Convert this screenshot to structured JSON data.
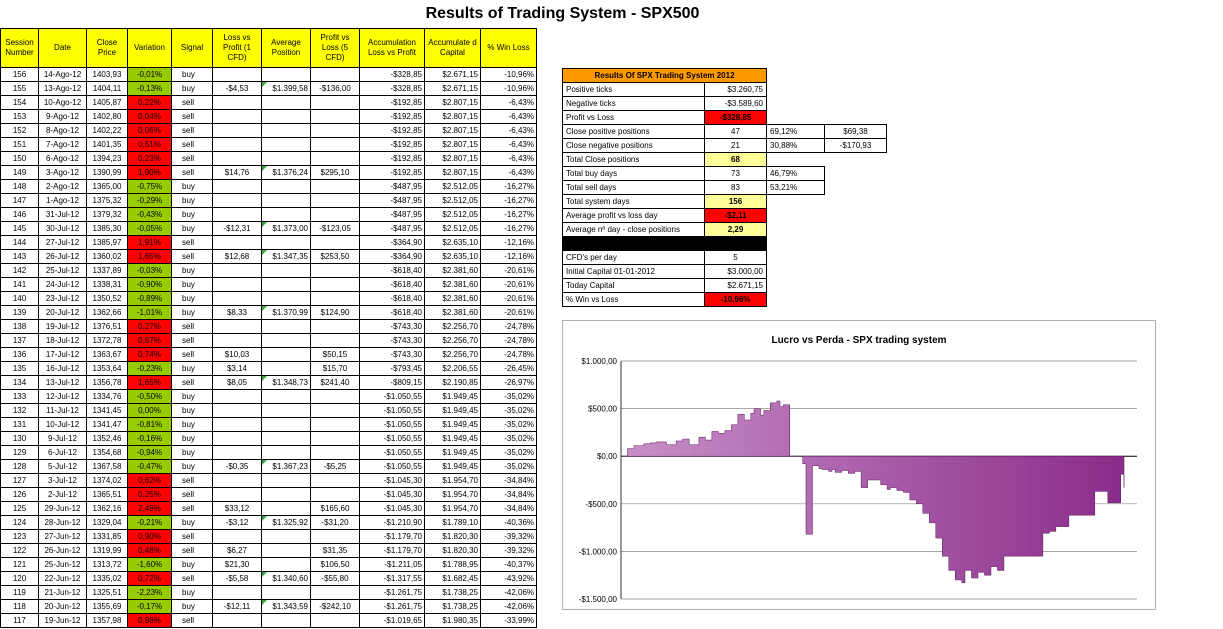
{
  "title": "Results of Trading System -  SPX500",
  "table": {
    "headers": [
      "Session Number",
      "Date",
      "Close Price",
      "Variation",
      "Signal",
      "Loss vs Profit (1 CFD)",
      "Average Position",
      "Profit vs Loss (5 CFD)",
      "Accumulation Loss vs Profit",
      "Accumulate d Capital",
      "% Win Loss"
    ],
    "rows": [
      {
        "session": "156",
        "date": "14-Ago-12",
        "close": "1403,93",
        "variation": "-0,01%",
        "var_color": "pos",
        "signal": "buy",
        "loss_profit": "",
        "avg": "",
        "profit_loss": "",
        "accum": "-$328,85",
        "capital": "$2.671,15",
        "win": "-10,96%",
        "flag": false
      },
      {
        "session": "155",
        "date": "13-Ago-12",
        "close": "1404,11",
        "variation": "-0,13%",
        "var_color": "pos",
        "signal": "buy",
        "loss_profit": "-$4,53",
        "avg": "$1.399,58",
        "profit_loss": "-$136,00",
        "accum": "-$328,85",
        "capital": "$2.671,15",
        "win": "-10,96%",
        "flag": true
      },
      {
        "session": "154",
        "date": "10-Ago-12",
        "close": "1405,87",
        "variation": "0,22%",
        "var_color": "neg",
        "signal": "sell",
        "loss_profit": "",
        "avg": "",
        "profit_loss": "",
        "accum": "-$192,85",
        "capital": "$2.807,15",
        "win": "-6,43%",
        "flag": false
      },
      {
        "session": "153",
        "date": "9-Ago-12",
        "close": "1402,80",
        "variation": "0,04%",
        "var_color": "neg",
        "signal": "sell",
        "loss_profit": "",
        "avg": "",
        "profit_loss": "",
        "accum": "-$192,85",
        "capital": "$2.807,15",
        "win": "-6,43%",
        "flag": false
      },
      {
        "session": "152",
        "date": "8-Ago-12",
        "close": "1402,22",
        "variation": "0,06%",
        "var_color": "neg",
        "signal": "sell",
        "loss_profit": "",
        "avg": "",
        "profit_loss": "",
        "accum": "-$192,85",
        "capital": "$2.807,15",
        "win": "-6,43%",
        "flag": false
      },
      {
        "session": "151",
        "date": "7-Ago-12",
        "close": "1401,35",
        "variation": "0,51%",
        "var_color": "neg",
        "signal": "sell",
        "loss_profit": "",
        "avg": "",
        "profit_loss": "",
        "accum": "-$192,85",
        "capital": "$2.807,15",
        "win": "-6,43%",
        "flag": false
      },
      {
        "session": "150",
        "date": "6-Ago-12",
        "close": "1394,23",
        "variation": "0,23%",
        "var_color": "neg",
        "signal": "sell",
        "loss_profit": "",
        "avg": "",
        "profit_loss": "",
        "accum": "-$192,85",
        "capital": "$2.807,15",
        "win": "-6,43%",
        "flag": false
      },
      {
        "session": "149",
        "date": "3-Ago-12",
        "close": "1390,99",
        "variation": "1,90%",
        "var_color": "neg",
        "signal": "sell",
        "loss_profit": "$14,76",
        "avg": "$1.376,24",
        "profit_loss": "$295,10",
        "accum": "-$192,85",
        "capital": "$2.807,15",
        "win": "-6,43%",
        "flag": true
      },
      {
        "session": "148",
        "date": "2-Ago-12",
        "close": "1365,00",
        "variation": "-0,75%",
        "var_color": "pos",
        "signal": "buy",
        "loss_profit": "",
        "avg": "",
        "profit_loss": "",
        "accum": "-$487,95",
        "capital": "$2.512,05",
        "win": "-16,27%",
        "flag": false
      },
      {
        "session": "147",
        "date": "1-Ago-12",
        "close": "1375,32",
        "variation": "-0,29%",
        "var_color": "pos",
        "signal": "buy",
        "loss_profit": "",
        "avg": "",
        "profit_loss": "",
        "accum": "-$487,95",
        "capital": "$2.512,05",
        "win": "-16,27%",
        "flag": false
      },
      {
        "session": "146",
        "date": "31-Jul-12",
        "close": "1379,32",
        "variation": "-0,43%",
        "var_color": "pos",
        "signal": "buy",
        "loss_profit": "",
        "avg": "",
        "profit_loss": "",
        "accum": "-$487,95",
        "capital": "$2.512,05",
        "win": "-16,27%",
        "flag": false
      },
      {
        "session": "145",
        "date": "30-Jul-12",
        "close": "1385,30",
        "variation": "-0,05%",
        "var_color": "pos",
        "signal": "buy",
        "loss_profit": "-$12,31",
        "avg": "$1.373,00",
        "profit_loss": "-$123,05",
        "accum": "-$487,95",
        "capital": "$2.512,05",
        "win": "-16,27%",
        "flag": true
      },
      {
        "session": "144",
        "date": "27-Jul-12",
        "close": "1385,97",
        "variation": "1,91%",
        "var_color": "neg",
        "signal": "sell",
        "loss_profit": "",
        "avg": "",
        "profit_loss": "",
        "accum": "-$364,90",
        "capital": "$2.635,10",
        "win": "-12,16%",
        "flag": false
      },
      {
        "session": "143",
        "date": "26-Jul-12",
        "close": "1360,02",
        "variation": "1,65%",
        "var_color": "neg",
        "signal": "sell",
        "loss_profit": "$12,68",
        "avg": "$1.347,35",
        "profit_loss": "$253,50",
        "accum": "-$364,90",
        "capital": "$2.635,10",
        "win": "-12,16%",
        "flag": true
      },
      {
        "session": "142",
        "date": "25-Jul-12",
        "close": "1337,89",
        "variation": "-0,03%",
        "var_color": "pos",
        "signal": "buy",
        "loss_profit": "",
        "avg": "",
        "profit_loss": "",
        "accum": "-$618,40",
        "capital": "$2.381,60",
        "win": "-20,61%",
        "flag": false
      },
      {
        "session": "141",
        "date": "24-Jul-12",
        "close": "1338,31",
        "variation": "-0,90%",
        "var_color": "pos",
        "signal": "buy",
        "loss_profit": "",
        "avg": "",
        "profit_loss": "",
        "accum": "-$618,40",
        "capital": "$2.381,60",
        "win": "-20,61%",
        "flag": false
      },
      {
        "session": "140",
        "date": "23-Jul-12",
        "close": "1350,52",
        "variation": "-0,89%",
        "var_color": "pos",
        "signal": "buy",
        "loss_profit": "",
        "avg": "",
        "profit_loss": "",
        "accum": "-$618,40",
        "capital": "$2.381,60",
        "win": "-20,61%",
        "flag": false
      },
      {
        "session": "139",
        "date": "20-Jul-12",
        "close": "1362,66",
        "variation": "-1,01%",
        "var_color": "pos",
        "signal": "buy",
        "loss_profit": "$8,33",
        "avg": "$1.370,99",
        "profit_loss": "$124,90",
        "accum": "-$618,40",
        "capital": "$2.381,60",
        "win": "-20,61%",
        "flag": true
      },
      {
        "session": "138",
        "date": "19-Jul-12",
        "close": "1376,51",
        "variation": "0,27%",
        "var_color": "neg",
        "signal": "sell",
        "loss_profit": "",
        "avg": "",
        "profit_loss": "",
        "accum": "-$743,30",
        "capital": "$2.256,70",
        "win": "-24,78%",
        "flag": false
      },
      {
        "session": "137",
        "date": "18-Jul-12",
        "close": "1372,78",
        "variation": "0,67%",
        "var_color": "neg",
        "signal": "sell",
        "loss_profit": "",
        "avg": "",
        "profit_loss": "",
        "accum": "-$743,30",
        "capital": "$2.256,70",
        "win": "-24,78%",
        "flag": false
      },
      {
        "session": "136",
        "date": "17-Jul-12",
        "close": "1363,67",
        "variation": "0,74%",
        "var_color": "neg",
        "signal": "sell",
        "loss_profit": "$10,03",
        "avg": "",
        "profit_loss": "$50,15",
        "accum": "-$743,30",
        "capital": "$2.256,70",
        "win": "-24,78%",
        "flag": false
      },
      {
        "session": "135",
        "date": "16-Jul-12",
        "close": "1353,64",
        "variation": "-0,23%",
        "var_color": "pos",
        "signal": "buy",
        "loss_profit": "$3,14",
        "avg": "",
        "profit_loss": "$15,70",
        "accum": "-$793,45",
        "capital": "$2.206,55",
        "win": "-26,45%",
        "flag": false
      },
      {
        "session": "134",
        "date": "13-Jul-12",
        "close": "1356,78",
        "variation": "1,65%",
        "var_color": "neg",
        "signal": "sell",
        "loss_profit": "$8,05",
        "avg": "$1.348,73",
        "profit_loss": "$241,40",
        "accum": "-$809,15",
        "capital": "$2.190,85",
        "win": "-26,97%",
        "flag": true
      },
      {
        "session": "133",
        "date": "12-Jul-12",
        "close": "1334,76",
        "variation": "-0,50%",
        "var_color": "pos",
        "signal": "buy",
        "loss_profit": "",
        "avg": "",
        "profit_loss": "",
        "accum": "-$1.050,55",
        "capital": "$1.949,45",
        "win": "-35,02%",
        "flag": false
      },
      {
        "session": "132",
        "date": "11-Jul-12",
        "close": "1341,45",
        "variation": "0,00%",
        "var_color": "pos",
        "signal": "buy",
        "loss_profit": "",
        "avg": "",
        "profit_loss": "",
        "accum": "-$1.050,55",
        "capital": "$1.949,45",
        "win": "-35,02%",
        "flag": false
      },
      {
        "session": "131",
        "date": "10-Jul-12",
        "close": "1341,47",
        "variation": "-0,81%",
        "var_color": "pos",
        "signal": "buy",
        "loss_profit": "",
        "avg": "",
        "profit_loss": "",
        "accum": "-$1.050,55",
        "capital": "$1.949,45",
        "win": "-35,02%",
        "flag": false
      },
      {
        "session": "130",
        "date": "9-Jul-12",
        "close": "1352,46",
        "variation": "-0,16%",
        "var_color": "pos",
        "signal": "buy",
        "loss_profit": "",
        "avg": "",
        "profit_loss": "",
        "accum": "-$1.050,55",
        "capital": "$1.949,45",
        "win": "-35,02%",
        "flag": false
      },
      {
        "session": "129",
        "date": "6-Jul-12",
        "close": "1354,68",
        "variation": "-0,94%",
        "var_color": "pos",
        "signal": "buy",
        "loss_profit": "",
        "avg": "",
        "profit_loss": "",
        "accum": "-$1.050,55",
        "capital": "$1.949,45",
        "win": "-35,02%",
        "flag": false
      },
      {
        "session": "128",
        "date": "5-Jul-12",
        "close": "1367,58",
        "variation": "-0,47%",
        "var_color": "pos",
        "signal": "buy",
        "loss_profit": "-$0,35",
        "avg": "$1.367,23",
        "profit_loss": "-$5,25",
        "accum": "-$1.050,55",
        "capital": "$1.949,45",
        "win": "-35,02%",
        "flag": true
      },
      {
        "session": "127",
        "date": "3-Jul-12",
        "close": "1374,02",
        "variation": "0,62%",
        "var_color": "neg",
        "signal": "sell",
        "loss_profit": "",
        "avg": "",
        "profit_loss": "",
        "accum": "-$1.045,30",
        "capital": "$1.954,70",
        "win": "-34,84%",
        "flag": false
      },
      {
        "session": "126",
        "date": "2-Jul-12",
        "close": "1365,51",
        "variation": "0,25%",
        "var_color": "neg",
        "signal": "sell",
        "loss_profit": "",
        "avg": "",
        "profit_loss": "",
        "accum": "-$1.045,30",
        "capital": "$1.954,70",
        "win": "-34,84%",
        "flag": false
      },
      {
        "session": "125",
        "date": "29-Jun-12",
        "close": "1362,16",
        "variation": "2,49%",
        "var_color": "neg",
        "signal": "sell",
        "loss_profit": "$33,12",
        "avg": "",
        "profit_loss": "$165,60",
        "accum": "-$1.045,30",
        "capital": "$1.954,70",
        "win": "-34,84%",
        "flag": false
      },
      {
        "session": "124",
        "date": "28-Jun-12",
        "close": "1329,04",
        "variation": "-0,21%",
        "var_color": "pos",
        "signal": "buy",
        "loss_profit": "-$3,12",
        "avg": "$1.325,92",
        "profit_loss": "-$31,20",
        "accum": "-$1.210,90",
        "capital": "$1.789,10",
        "win": "-40,36%",
        "flag": true
      },
      {
        "session": "123",
        "date": "27-Jun-12",
        "close": "1331,85",
        "variation": "0,90%",
        "var_color": "neg",
        "signal": "sell",
        "loss_profit": "",
        "avg": "",
        "profit_loss": "",
        "accum": "-$1.179,70",
        "capital": "$1.820,30",
        "win": "-39,32%",
        "flag": false
      },
      {
        "session": "122",
        "date": "26-Jun-12",
        "close": "1319,99",
        "variation": "0,48%",
        "var_color": "neg",
        "signal": "sell",
        "loss_profit": "$6,27",
        "avg": "",
        "profit_loss": "$31,35",
        "accum": "-$1.179,70",
        "capital": "$1.820,30",
        "win": "-39,32%",
        "flag": false
      },
      {
        "session": "121",
        "date": "25-Jun-12",
        "close": "1313,72",
        "variation": "-1,60%",
        "var_color": "pos",
        "signal": "buy",
        "loss_profit": "$21,30",
        "avg": "",
        "profit_loss": "$106,50",
        "accum": "-$1.211,05",
        "capital": "$1.788,95",
        "win": "-40,37%",
        "flag": false
      },
      {
        "session": "120",
        "date": "22-Jun-12",
        "close": "1335,02",
        "variation": "0,72%",
        "var_color": "neg",
        "signal": "sell",
        "loss_profit": "-$5,58",
        "avg": "$1.340,60",
        "profit_loss": "-$55,80",
        "accum": "-$1.317,55",
        "capital": "$1.682,45",
        "win": "-43,92%",
        "flag": true
      },
      {
        "session": "119",
        "date": "21-Jun-12",
        "close": "1325,51",
        "variation": "-2,23%",
        "var_color": "pos",
        "signal": "buy",
        "loss_profit": "",
        "avg": "",
        "profit_loss": "",
        "accum": "-$1.261,75",
        "capital": "$1.738,25",
        "win": "-42,06%",
        "flag": false
      },
      {
        "session": "118",
        "date": "20-Jun-12",
        "close": "1355,69",
        "variation": "-0,17%",
        "var_color": "pos",
        "signal": "buy",
        "loss_profit": "-$12,11",
        "avg": "$1.343,59",
        "profit_loss": "-$242,10",
        "accum": "-$1.261,75",
        "capital": "$1.738,25",
        "win": "-42,06%",
        "flag": true
      },
      {
        "session": "117",
        "date": "19-Jun-12",
        "close": "1357,98",
        "variation": "0,98%",
        "var_color": "neg",
        "signal": "sell",
        "loss_profit": "",
        "avg": "",
        "profit_loss": "",
        "accum": "-$1.019,65",
        "capital": "$1.980,35",
        "win": "-33,99%",
        "flag": false
      }
    ]
  },
  "summary": {
    "title": "Results Of SPX Trading System 2012",
    "positive_ticks_label": "Positive ticks",
    "positive_ticks": "$3.260,75",
    "negative_ticks_label": "Negative ticks",
    "negative_ticks": "-$3.589,60",
    "profit_loss_label": "Profit vs Loss",
    "profit_loss": "-$328,85",
    "close_pos_label": "Close positive positions",
    "close_pos": "47",
    "close_pos_pct": "69,12%",
    "close_pos_avg": "$69,38",
    "close_neg_label": "Close negative positions",
    "close_neg": "21",
    "close_neg_pct": "30,88%",
    "close_neg_avg": "-$170,93",
    "total_close_label": "Total Close positions",
    "total_close": "68",
    "buy_days_label": "Total buy days",
    "buy_days": "73",
    "buy_days_pct": "46,79%",
    "sell_days_label": "Total sell days",
    "sell_days": "83",
    "sell_days_pct": "53,21%",
    "system_days_label": "Total system days",
    "system_days": "156",
    "avg_profit_label": "Average profit vs loss day",
    "avg_profit": "-$2,11",
    "avg_day_label": "Average nº day - close positions",
    "avg_day": "2,29",
    "cfd_label": "CFD's per day",
    "cfd": "5",
    "initial_label": "Initial Capital 01-01-2012",
    "initial": "$3.000,00",
    "today_label": "Today Capital",
    "today": "$2.671,15",
    "win_label": "% Win vs Loss",
    "win": "-10,96%"
  },
  "chart_data": {
    "type": "area",
    "title": "Lucro vs Perda - SPX trading system",
    "ylim": [
      -1500,
      1000
    ],
    "yticks": [
      "$1.000,00",
      "$500,00",
      "$0,00",
      "-$500,00",
      "-$1.000,00",
      "-$1.500,00"
    ],
    "ytick_values": [
      1000,
      500,
      0,
      -500,
      -1000,
      -1500
    ],
    "grid": true,
    "legend": "none",
    "fill_color": "#8a2c8a",
    "x": [
      1,
      3,
      5,
      8,
      10,
      12,
      15,
      18,
      20,
      22,
      25,
      27,
      29,
      31,
      33,
      35,
      37,
      39,
      41,
      42,
      44,
      45,
      47,
      49,
      50,
      51,
      53,
      55,
      57,
      58,
      60,
      62,
      63,
      65,
      66,
      67,
      69,
      71,
      73,
      75,
      77,
      79,
      81,
      83,
      84,
      86,
      88,
      90,
      92,
      94,
      96,
      98,
      100,
      102,
      104,
      106,
      107,
      109,
      111,
      113,
      115,
      117,
      119,
      121,
      123,
      125,
      127,
      129,
      131,
      133,
      135,
      137,
      139,
      141,
      143,
      145,
      147,
      149,
      151,
      153,
      155,
      156
    ],
    "values": [
      0,
      80,
      110,
      130,
      140,
      150,
      120,
      160,
      180,
      120,
      200,
      170,
      260,
      240,
      270,
      330,
      440,
      380,
      450,
      500,
      430,
      480,
      560,
      580,
      520,
      540,
      0,
      0,
      -80,
      -820,
      -100,
      -130,
      -140,
      -160,
      -140,
      -170,
      -150,
      -180,
      -160,
      -330,
      -250,
      -250,
      -300,
      -350,
      -330,
      -360,
      -380,
      -460,
      -500,
      -600,
      -700,
      -860,
      -1050,
      -1200,
      -1300,
      -1330,
      -1200,
      -1280,
      -1220,
      -1250,
      -1160,
      -1200,
      -1050,
      -1050,
      -1050,
      -1050,
      -1050,
      -1050,
      -810,
      -790,
      -740,
      -740,
      -620,
      -620,
      -620,
      -620,
      -370,
      -370,
      -490,
      -490,
      -190,
      -330
    ]
  }
}
